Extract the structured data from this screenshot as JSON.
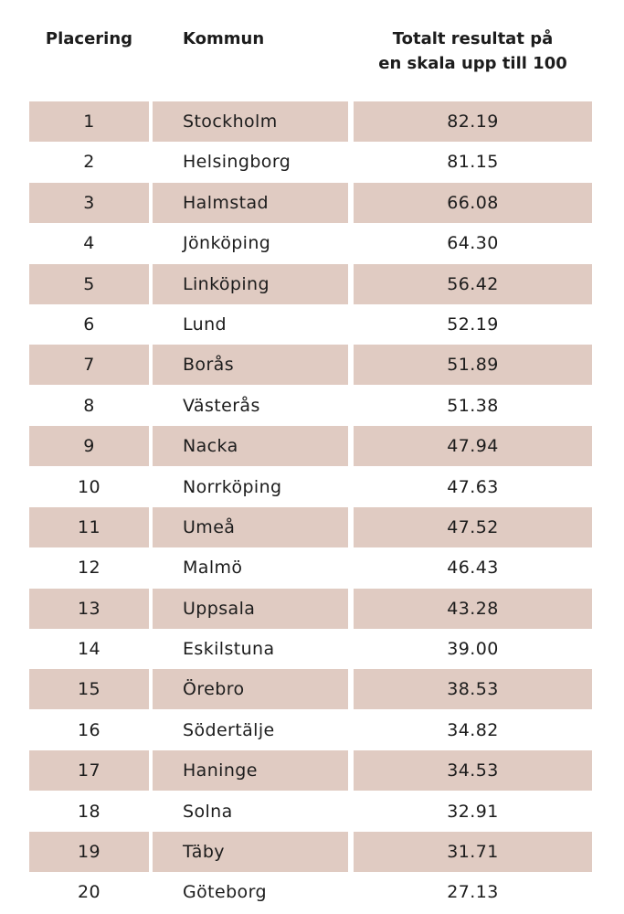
{
  "table": {
    "headers": {
      "rank": "Placering",
      "kommun": "Kommun",
      "result_line1": "Totalt resultat på",
      "result_line2": "en skala upp till 100"
    },
    "rows": [
      {
        "rank": "1",
        "kommun": "Stockholm",
        "result": "82.19"
      },
      {
        "rank": "2",
        "kommun": "Helsingborg",
        "result": "81.15"
      },
      {
        "rank": "3",
        "kommun": "Halmstad",
        "result": "66.08"
      },
      {
        "rank": "4",
        "kommun": "Jönköping",
        "result": "64.30"
      },
      {
        "rank": "5",
        "kommun": "Linköping",
        "result": "56.42"
      },
      {
        "rank": "6",
        "kommun": "Lund",
        "result": "52.19"
      },
      {
        "rank": "7",
        "kommun": "Borås",
        "result": "51.89"
      },
      {
        "rank": "8",
        "kommun": "Västerås",
        "result": "51.38"
      },
      {
        "rank": "9",
        "kommun": "Nacka",
        "result": "47.94"
      },
      {
        "rank": "10",
        "kommun": "Norrköping",
        "result": "47.63"
      },
      {
        "rank": "11",
        "kommun": "Umeå",
        "result": "47.52"
      },
      {
        "rank": "12",
        "kommun": "Malmö",
        "result": "46.43"
      },
      {
        "rank": "13",
        "kommun": "Uppsala",
        "result": "43.28"
      },
      {
        "rank": "14",
        "kommun": "Eskilstuna",
        "result": "39.00"
      },
      {
        "rank": "15",
        "kommun": "Örebro",
        "result": "38.53"
      },
      {
        "rank": "16",
        "kommun": "Södertälje",
        "result": "34.82"
      },
      {
        "rank": "17",
        "kommun": "Haninge",
        "result": "34.53"
      },
      {
        "rank": "18",
        "kommun": "Solna",
        "result": "32.91"
      },
      {
        "rank": "19",
        "kommun": "Täby",
        "result": "31.71"
      },
      {
        "rank": "20",
        "kommun": "Göteborg",
        "result": "27.13"
      }
    ]
  },
  "colors": {
    "row_shade": "#e0cbc2",
    "background": "#ffffff",
    "text": "#1c1c1c"
  }
}
